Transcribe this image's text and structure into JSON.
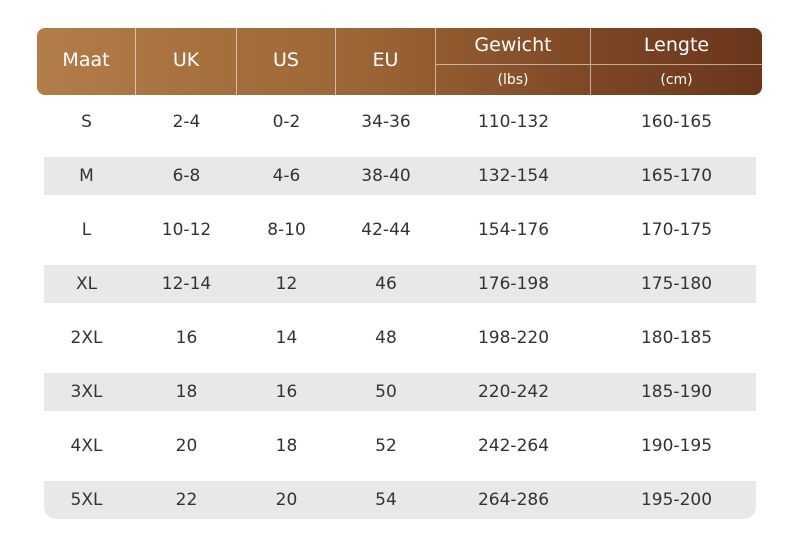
{
  "table": {
    "columns": [
      {
        "label": "Maat"
      },
      {
        "label": "UK"
      },
      {
        "label": "US"
      },
      {
        "label": "EU"
      },
      {
        "label": "Gewicht",
        "unit": "(lbs)"
      },
      {
        "label": "Lengte",
        "unit": "(cm)"
      }
    ],
    "rows": [
      [
        "S",
        "2-4",
        "0-2",
        "34-36",
        "110-132",
        "160-165"
      ],
      [
        "M",
        "6-8",
        "4-6",
        "38-40",
        "132-154",
        "165-170"
      ],
      [
        "L",
        "10-12",
        "8-10",
        "42-44",
        "154-176",
        "170-175"
      ],
      [
        "XL",
        "12-14",
        "12",
        "46",
        "176-198",
        "175-180"
      ],
      [
        "2XL",
        "16",
        "14",
        "48",
        "198-220",
        "180-185"
      ],
      [
        "3XL",
        "18",
        "16",
        "50",
        "220-242",
        "185-190"
      ],
      [
        "4XL",
        "20",
        "18",
        "52",
        "242-264",
        "190-195"
      ],
      [
        "5XL",
        "22",
        "20",
        "54",
        "264-286",
        "195-200"
      ]
    ]
  }
}
